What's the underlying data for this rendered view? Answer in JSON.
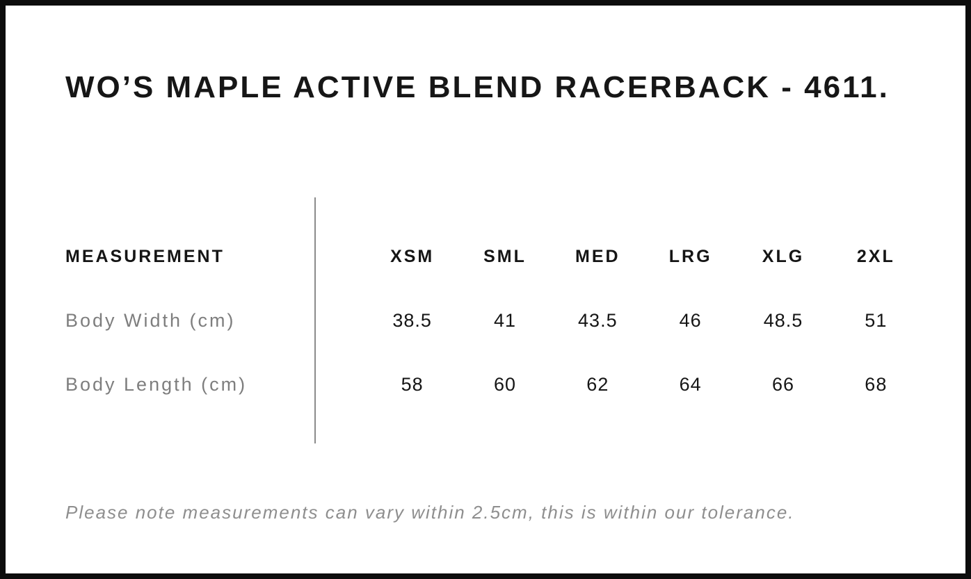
{
  "colors": {
    "background": "#ffffff",
    "frame_border": "#0d0d0d",
    "heading_text": "#161616",
    "value_text": "#151515",
    "muted_label_text": "#7e7e7e",
    "note_text": "#8e8e8e",
    "divider": "#8b8b8b"
  },
  "page": {
    "title": "WO’S MAPLE ACTIVE BLEND RACERBACK - 4611.",
    "note": "Please note measurements can vary within 2.5cm, this is within our tolerance."
  },
  "size_table": {
    "header_label": "MEASUREMENT",
    "sizes": [
      "XSM",
      "SML",
      "MED",
      "LRG",
      "XLG",
      "2XL"
    ],
    "rows": [
      {
        "label": "Body Width (cm)",
        "values": [
          "38.5",
          "41",
          "43.5",
          "46",
          "48.5",
          "51"
        ]
      },
      {
        "label": "Body Length (cm)",
        "values": [
          "58",
          "60",
          "62",
          "64",
          "66",
          "68"
        ]
      }
    ]
  }
}
